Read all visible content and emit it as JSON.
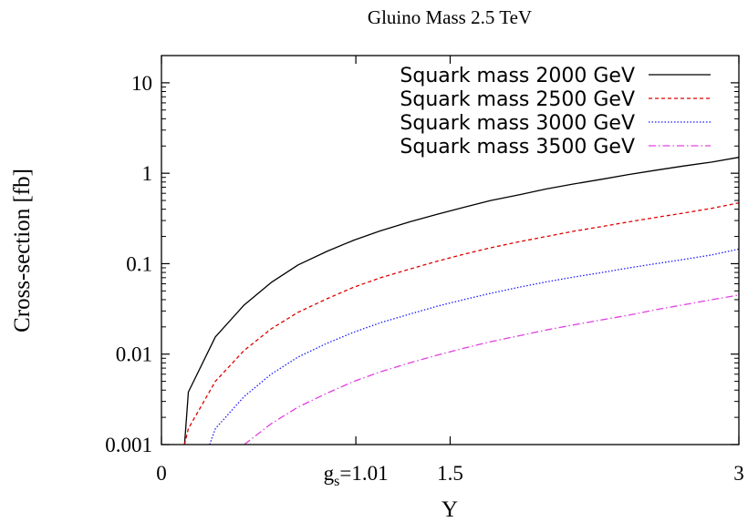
{
  "chart_data": {
    "type": "line",
    "title": "Gluino Mass 2.5 TeV",
    "xlabel": "Y",
    "ylabel": "Cross-section [fb]",
    "xlim": [
      0,
      3
    ],
    "ylim": [
      0.001,
      20
    ],
    "yscale": "log",
    "grid": false,
    "legend_position": "top-right",
    "x_ticks": [
      {
        "value": 0,
        "label": "0"
      },
      {
        "value": 1.01,
        "label": "g",
        "sub": "s",
        "suffix": "=1.01"
      },
      {
        "value": 1.5,
        "label": "1.5"
      },
      {
        "value": 3,
        "label": "3"
      }
    ],
    "y_ticks": [
      {
        "value": 0.001,
        "label": "0.001"
      },
      {
        "value": 0.01,
        "label": "0.01"
      },
      {
        "value": 0.1,
        "label": "0.1"
      },
      {
        "value": 1,
        "label": "1"
      },
      {
        "value": 10,
        "label": "10"
      }
    ],
    "series": [
      {
        "name": "Squark mass 2000 GeV",
        "color": "#000000",
        "dash": "",
        "x": [
          0.12,
          0.14,
          0.28,
          0.43,
          0.57,
          0.71,
          0.86,
          1.0,
          1.14,
          1.29,
          1.43,
          1.57,
          1.71,
          1.86,
          2.0,
          2.14,
          2.29,
          2.43,
          2.57,
          2.71,
          2.86,
          3.0
        ],
        "y": [
          0.001,
          0.0038,
          0.0155,
          0.035,
          0.062,
          0.097,
          0.137,
          0.182,
          0.232,
          0.29,
          0.35,
          0.42,
          0.5,
          0.58,
          0.67,
          0.76,
          0.86,
          0.97,
          1.08,
          1.2,
          1.33,
          1.5
        ]
      },
      {
        "name": "Squark mass 2500 GeV",
        "color": "#dd0000",
        "dash": "4,3",
        "x": [
          0.12,
          0.14,
          0.28,
          0.43,
          0.57,
          0.71,
          0.86,
          1.0,
          1.14,
          1.29,
          1.43,
          1.57,
          1.71,
          1.86,
          2.0,
          2.14,
          2.29,
          2.43,
          2.57,
          2.71,
          2.86,
          3.0
        ],
        "y": [
          0.001,
          0.0015,
          0.005,
          0.011,
          0.019,
          0.029,
          0.041,
          0.055,
          0.07,
          0.087,
          0.106,
          0.127,
          0.15,
          0.175,
          0.2,
          0.228,
          0.258,
          0.29,
          0.325,
          0.362,
          0.41,
          0.47
        ]
      },
      {
        "name": "Squark mass 3000 GeV",
        "color": "#1a1aff",
        "dash": "1.5,2",
        "x": [
          0.25,
          0.28,
          0.43,
          0.57,
          0.71,
          0.86,
          1.0,
          1.14,
          1.29,
          1.43,
          1.57,
          1.71,
          1.86,
          2.0,
          2.14,
          2.29,
          2.43,
          2.57,
          2.71,
          2.86,
          3.0
        ],
        "y": [
          0.001,
          0.0015,
          0.0034,
          0.006,
          0.0093,
          0.0132,
          0.0175,
          0.0223,
          0.0277,
          0.0337,
          0.04,
          0.047,
          0.055,
          0.063,
          0.071,
          0.08,
          0.09,
          0.1,
          0.111,
          0.125,
          0.145
        ]
      },
      {
        "name": "Squark mass 3500 GeV",
        "color": "#e040e0",
        "dash": "8,3,1.5,3",
        "x": [
          0.43,
          0.57,
          0.71,
          0.86,
          1.0,
          1.14,
          1.29,
          1.43,
          1.57,
          1.71,
          1.86,
          2.0,
          2.14,
          2.29,
          2.43,
          2.57,
          2.71,
          2.86,
          3.0
        ],
        "y": [
          0.001,
          0.0017,
          0.0026,
          0.0037,
          0.005,
          0.0064,
          0.008,
          0.0097,
          0.0116,
          0.0137,
          0.016,
          0.0185,
          0.021,
          0.024,
          0.027,
          0.031,
          0.035,
          0.04,
          0.045
        ]
      }
    ]
  }
}
